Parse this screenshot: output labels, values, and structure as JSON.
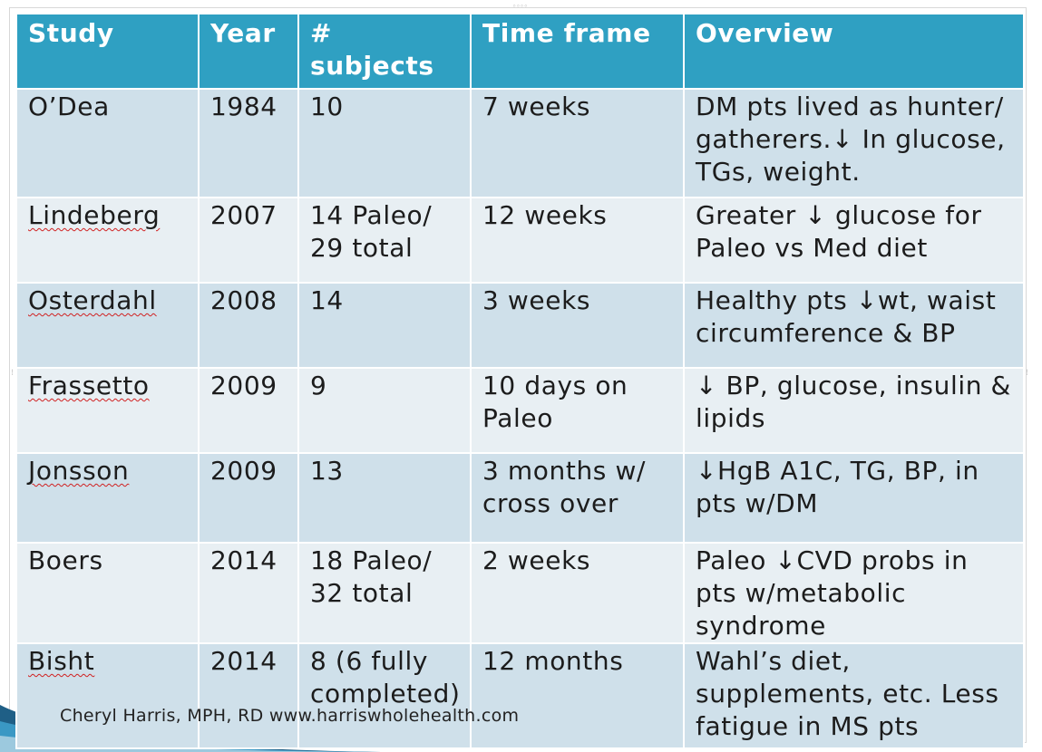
{
  "table": {
    "headers": [
      "Study",
      "Year",
      "# subjects",
      "Time frame",
      "Overview"
    ],
    "rows": [
      {
        "study": "O’Dea",
        "year": "1984",
        "subjects": "10",
        "timeframe": "7 weeks",
        "overview": "DM pts lived as hunter/ gatherers.↓ In glucose, TGs, weight."
      },
      {
        "study": "Lindeberg",
        "year": "2007",
        "subjects": "14 Paleo/ 29 total",
        "timeframe": "12 weeks",
        "overview": "Greater ↓ glucose for Paleo vs Med diet"
      },
      {
        "study": "Osterdahl",
        "year": "2008",
        "subjects": "14",
        "timeframe": "3 weeks",
        "overview": "Healthy pts ↓wt, waist circumference & BP"
      },
      {
        "study": "Frassetto",
        "year": "2009",
        "subjects": "9",
        "timeframe": "10 days on Paleo",
        "overview": "↓ BP, glucose, insulin & lipids"
      },
      {
        "study": "Jonsson",
        "year": "2009",
        "subjects": "13",
        "timeframe": "3 months w/ cross over",
        "overview": "↓HgB A1C, TG, BP, in pts w/DM"
      },
      {
        "study": "Boers",
        "year": "2014",
        "subjects": "18 Paleo/ 32 total",
        "timeframe": "2 weeks",
        "overview": "Paleo ↓CVD probs in pts w/metabolic syndrome"
      },
      {
        "study": "Bisht",
        "year": "2014",
        "subjects": "8 (6 fully completed)",
        "timeframe": "12 months",
        "overview": "Wahl’s diet, supplements, etc. Less fatigue in MS pts"
      }
    ]
  },
  "footer": {
    "text": "Cheryl Harris, MPH, RD  www.harriswholehealth.com"
  },
  "colors": {
    "header": "#2fa0c2",
    "row_dark": "#cfe0ea",
    "row_light": "#e8eff3",
    "wave": "#2a7fa8"
  }
}
